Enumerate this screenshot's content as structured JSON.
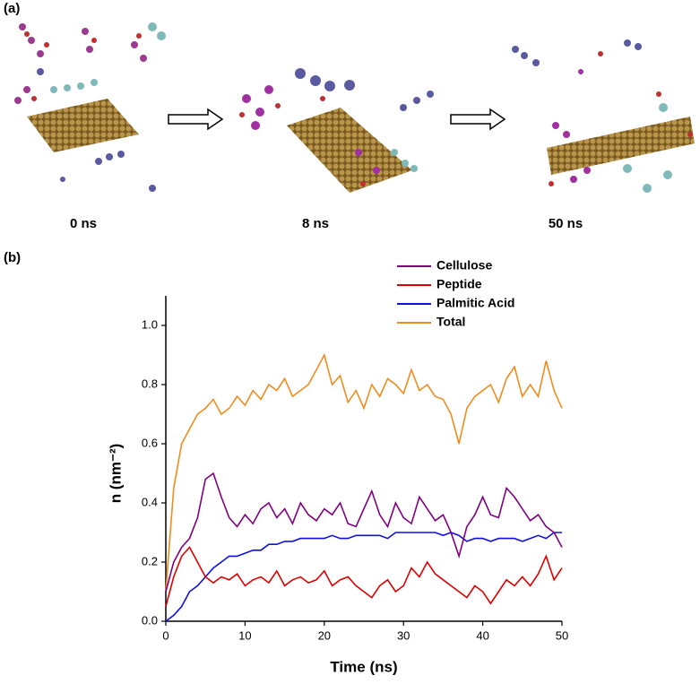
{
  "panel_a": {
    "label": "(a)",
    "snapshots": [
      "0 ns",
      "8 ns",
      "50 ns"
    ]
  },
  "chart_data": {
    "type": "line",
    "panel_label": "(b)",
    "xlabel": "Time (ns)",
    "ylabel": "n (nm⁻²)",
    "x": [
      0,
      1,
      2,
      3,
      4,
      5,
      6,
      7,
      8,
      9,
      10,
      11,
      12,
      13,
      14,
      15,
      16,
      17,
      18,
      19,
      20,
      21,
      22,
      23,
      24,
      25,
      26,
      27,
      28,
      29,
      30,
      31,
      32,
      33,
      34,
      35,
      36,
      37,
      38,
      39,
      40,
      41,
      42,
      43,
      44,
      45,
      46,
      47,
      48,
      49,
      50
    ],
    "series": [
      {
        "name": "Cellulose",
        "color": "#800080",
        "values": [
          0.1,
          0.2,
          0.25,
          0.28,
          0.35,
          0.48,
          0.5,
          0.42,
          0.35,
          0.32,
          0.36,
          0.33,
          0.38,
          0.4,
          0.35,
          0.38,
          0.33,
          0.4,
          0.36,
          0.34,
          0.38,
          0.36,
          0.4,
          0.33,
          0.32,
          0.38,
          0.44,
          0.36,
          0.32,
          0.4,
          0.35,
          0.33,
          0.42,
          0.38,
          0.34,
          0.36,
          0.3,
          0.22,
          0.32,
          0.36,
          0.42,
          0.36,
          0.35,
          0.45,
          0.42,
          0.38,
          0.34,
          0.36,
          0.32,
          0.3,
          0.25
        ]
      },
      {
        "name": "Peptide",
        "color": "#e00000",
        "values": [
          0.05,
          0.15,
          0.22,
          0.25,
          0.2,
          0.15,
          0.13,
          0.15,
          0.14,
          0.16,
          0.12,
          0.14,
          0.15,
          0.13,
          0.17,
          0.12,
          0.14,
          0.15,
          0.13,
          0.14,
          0.17,
          0.12,
          0.14,
          0.15,
          0.12,
          0.1,
          0.08,
          0.12,
          0.14,
          0.1,
          0.12,
          0.18,
          0.15,
          0.2,
          0.16,
          0.14,
          0.12,
          0.1,
          0.08,
          0.12,
          0.1,
          0.06,
          0.1,
          0.14,
          0.12,
          0.15,
          0.12,
          0.16,
          0.22,
          0.14,
          0.18
        ]
      },
      {
        "name": "Palmitic Acid",
        "color": "#1010e0",
        "values": [
          0,
          0.02,
          0.05,
          0.1,
          0.12,
          0.15,
          0.18,
          0.2,
          0.22,
          0.22,
          0.23,
          0.24,
          0.24,
          0.26,
          0.26,
          0.27,
          0.27,
          0.28,
          0.28,
          0.28,
          0.28,
          0.29,
          0.28,
          0.28,
          0.29,
          0.29,
          0.29,
          0.29,
          0.28,
          0.3,
          0.3,
          0.3,
          0.3,
          0.3,
          0.3,
          0.29,
          0.3,
          0.29,
          0.27,
          0.28,
          0.28,
          0.27,
          0.28,
          0.28,
          0.28,
          0.27,
          0.28,
          0.29,
          0.28,
          0.3,
          0.3
        ]
      },
      {
        "name": "Total",
        "color": "#f08c1e",
        "values": [
          0.1,
          0.45,
          0.6,
          0.65,
          0.7,
          0.72,
          0.75,
          0.7,
          0.72,
          0.76,
          0.73,
          0.78,
          0.75,
          0.8,
          0.78,
          0.82,
          0.76,
          0.78,
          0.8,
          0.85,
          0.9,
          0.8,
          0.83,
          0.74,
          0.78,
          0.72,
          0.8,
          0.76,
          0.82,
          0.8,
          0.77,
          0.85,
          0.78,
          0.8,
          0.76,
          0.75,
          0.7,
          0.6,
          0.72,
          0.76,
          0.78,
          0.8,
          0.74,
          0.82,
          0.86,
          0.76,
          0.8,
          0.76,
          0.88,
          0.78,
          0.72
        ]
      }
    ],
    "xlim": [
      0,
      50
    ],
    "xticks": [
      0,
      10,
      20,
      30,
      40,
      50
    ],
    "ylim": [
      0,
      1.1
    ],
    "yticks": [
      {
        "value": 0,
        "label": "0.0"
      },
      0.2,
      0.4,
      0.6,
      0.8,
      {
        "value": 1,
        "label": "1.0"
      }
    ],
    "legend": "top"
  }
}
